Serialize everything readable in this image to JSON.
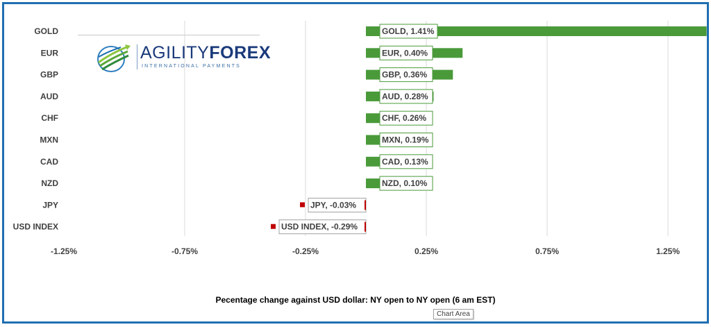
{
  "chart_data": {
    "type": "bar",
    "orientation": "horizontal",
    "categories": [
      "GOLD",
      "EUR",
      "GBP",
      "AUD",
      "CHF",
      "MXN",
      "CAD",
      "NZD",
      "JPY",
      "USD INDEX"
    ],
    "values": [
      1.41,
      0.4,
      0.36,
      0.28,
      0.26,
      0.19,
      0.13,
      0.1,
      -0.03,
      -0.29
    ],
    "unit": "%",
    "data_labels": [
      "GOLD, 1.41%",
      "EUR, 0.40%",
      "GBP, 0.36%",
      "AUD, 0.28%",
      "CHF, 0.26%",
      "MXN, 0.19%",
      "CAD, 0.13%",
      "NZD, 0.10%",
      "JPY, -0.03%",
      "USD INDEX, -0.29%"
    ],
    "xlim": [
      -1.25,
      1.25
    ],
    "xticks": [
      -1.25,
      -0.75,
      -0.25,
      0.25,
      0.75,
      1.25
    ],
    "xtick_labels": [
      "-1.25%",
      "-0.75%",
      "-0.25%",
      "0.25%",
      "0.75%",
      "1.25%"
    ],
    "grid": "vertical",
    "colors": {
      "positive": "#4a9a3a",
      "negative": "#c00000",
      "gridline": "#d9d9d9",
      "frame": "#1f6fb2"
    },
    "xlabel": "",
    "ylabel": ""
  },
  "caption": "Pecentage change against USD dollar:  NY open to NY open  (6 am EST)",
  "logo": {
    "word1": "AGILITY",
    "word2": "FOREX",
    "tagline": "INTERNATIONAL PAYMENTS"
  },
  "tooltip": "Chart Area"
}
